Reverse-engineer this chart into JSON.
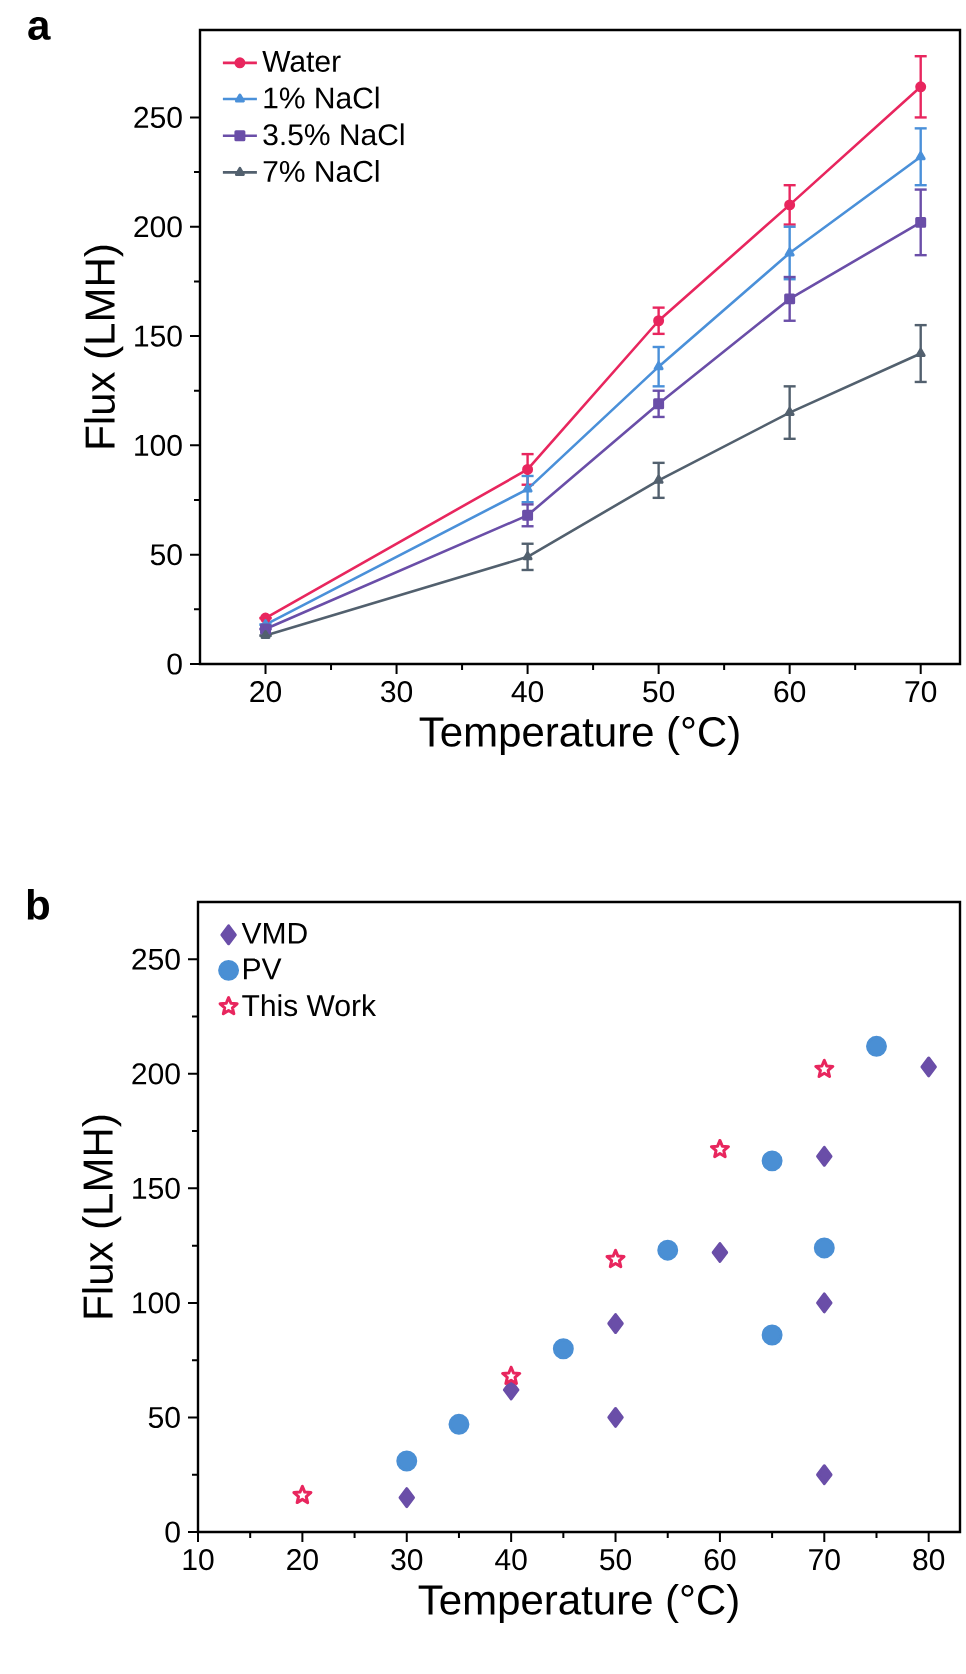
{
  "chart_data": [
    {
      "type": "line",
      "title": "a",
      "xlabel": "Temperature (°C)",
      "ylabel": "Flux (LMH)",
      "x": [
        20,
        40,
        50,
        60,
        70
      ],
      "xlim": [
        15,
        73
      ],
      "ylim": [
        0,
        290
      ],
      "xticks": [
        20,
        30,
        40,
        50,
        60,
        70
      ],
      "yticks": [
        0,
        50,
        100,
        150,
        200,
        250
      ],
      "legend": "top left",
      "series": [
        {
          "name": "Water",
          "color": "#e8265e",
          "marker": "circle",
          "values": [
            21,
            89,
            157,
            210,
            264
          ],
          "errors": [
            null,
            7,
            6,
            9,
            14
          ]
        },
        {
          "name": "1% NaCl",
          "color": "#4a90d9",
          "marker": "triangle",
          "values": [
            18,
            80,
            136,
            188,
            232
          ],
          "errors": [
            null,
            6,
            9,
            12,
            13
          ]
        },
        {
          "name": "3.5% NaCl",
          "color": "#6a4ea8",
          "marker": "square",
          "values": [
            16,
            68,
            119,
            167,
            202
          ],
          "errors": [
            null,
            5,
            6,
            10,
            15
          ]
        },
        {
          "name": "7% NaCl",
          "color": "#52606e",
          "marker": "triangle",
          "values": [
            13,
            49,
            84,
            115,
            142
          ],
          "errors": [
            null,
            6,
            8,
            12,
            13
          ]
        }
      ]
    },
    {
      "type": "scatter",
      "title": "b",
      "xlabel": "Temperature (°C)",
      "ylabel": "Flux (LMH)",
      "xlim": [
        10,
        83
      ],
      "ylim": [
        0,
        275
      ],
      "xticks": [
        10,
        20,
        30,
        40,
        50,
        60,
        70,
        80
      ],
      "yticks": [
        0,
        50,
        100,
        150,
        200,
        250
      ],
      "legend": "top left",
      "series": [
        {
          "name": "VMD",
          "color": "#6a4ea8",
          "marker": "diamond",
          "x": [
            30,
            40,
            50,
            50,
            60,
            70,
            70,
            70,
            80
          ],
          "values": [
            15,
            62,
            91,
            50,
            122,
            164,
            100,
            25,
            203
          ]
        },
        {
          "name": "PV",
          "color": "#4a8fd4",
          "marker": "circle",
          "x": [
            30,
            35,
            45,
            55,
            65,
            65,
            70,
            75
          ],
          "values": [
            31,
            47,
            80,
            123,
            162,
            86,
            124,
            212
          ]
        },
        {
          "name": "This Work",
          "color": "#e8265e",
          "marker": "star",
          "x": [
            20,
            40,
            50,
            60,
            70
          ],
          "values": [
            16,
            68,
            119,
            167,
            202
          ]
        }
      ]
    }
  ]
}
